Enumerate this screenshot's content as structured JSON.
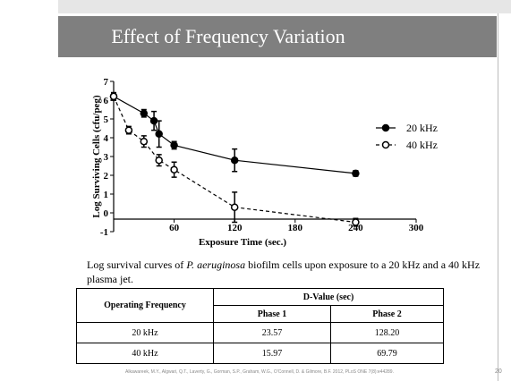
{
  "slide": {
    "title": "Effect of Frequency Variation",
    "caption": [
      "Log survival curves of ",
      "P. aeruginosa",
      " biofilm cells upon exposure to a 20 kHz and a 40 kHz plasma jet."
    ],
    "footer": "Alkawareek, M.Y., Algwari, Q.T., Laverty, G., Gorman, S.P., Graham, W.G., O'Connell, D. & Gilmore, B.F. 2012, PLoS ONE 7(8):e44289.",
    "page_number": "20"
  },
  "chart_data": {
    "type": "line",
    "x_label": "Exposure Time (sec.)",
    "y_label": "Log Surviving Cells (cfu/peg)",
    "xlim": [
      0,
      300
    ],
    "xticks": [
      60,
      120,
      180,
      240,
      300
    ],
    "ylim": [
      -1,
      7
    ],
    "yticks": [
      -1,
      0,
      1,
      2,
      3,
      4,
      5,
      6,
      7
    ],
    "legend": "right",
    "series": [
      {
        "name": "20 kHz",
        "color": "#000000",
        "marker": "filled",
        "line": "solid",
        "x": [
          0,
          30,
          40,
          45,
          60,
          120,
          240
        ],
        "values": [
          6.2,
          5.3,
          4.9,
          4.2,
          3.6,
          2.8,
          2.1
        ],
        "errors": [
          0.2,
          0.2,
          0.5,
          0.7,
          0.2,
          0.6,
          0.15
        ]
      },
      {
        "name": "40 kHz",
        "color": "#000000",
        "marker": "open",
        "line": "dashed",
        "x": [
          0,
          15,
          30,
          45,
          60,
          120,
          240
        ],
        "values": [
          6.2,
          4.4,
          3.8,
          2.8,
          2.3,
          0.3,
          -0.5
        ],
        "errors": [
          0.2,
          0.2,
          0.3,
          0.3,
          0.4,
          0.8,
          0.2
        ]
      }
    ]
  },
  "table": {
    "header": [
      "Operating Frequency",
      "D-Value (sec)"
    ],
    "subheader": [
      "Phase 1",
      "Phase 2"
    ],
    "rows": [
      [
        "20 kHz",
        "23.57",
        "128.20"
      ],
      [
        "40 kHz",
        "15.97",
        "69.79"
      ]
    ]
  }
}
